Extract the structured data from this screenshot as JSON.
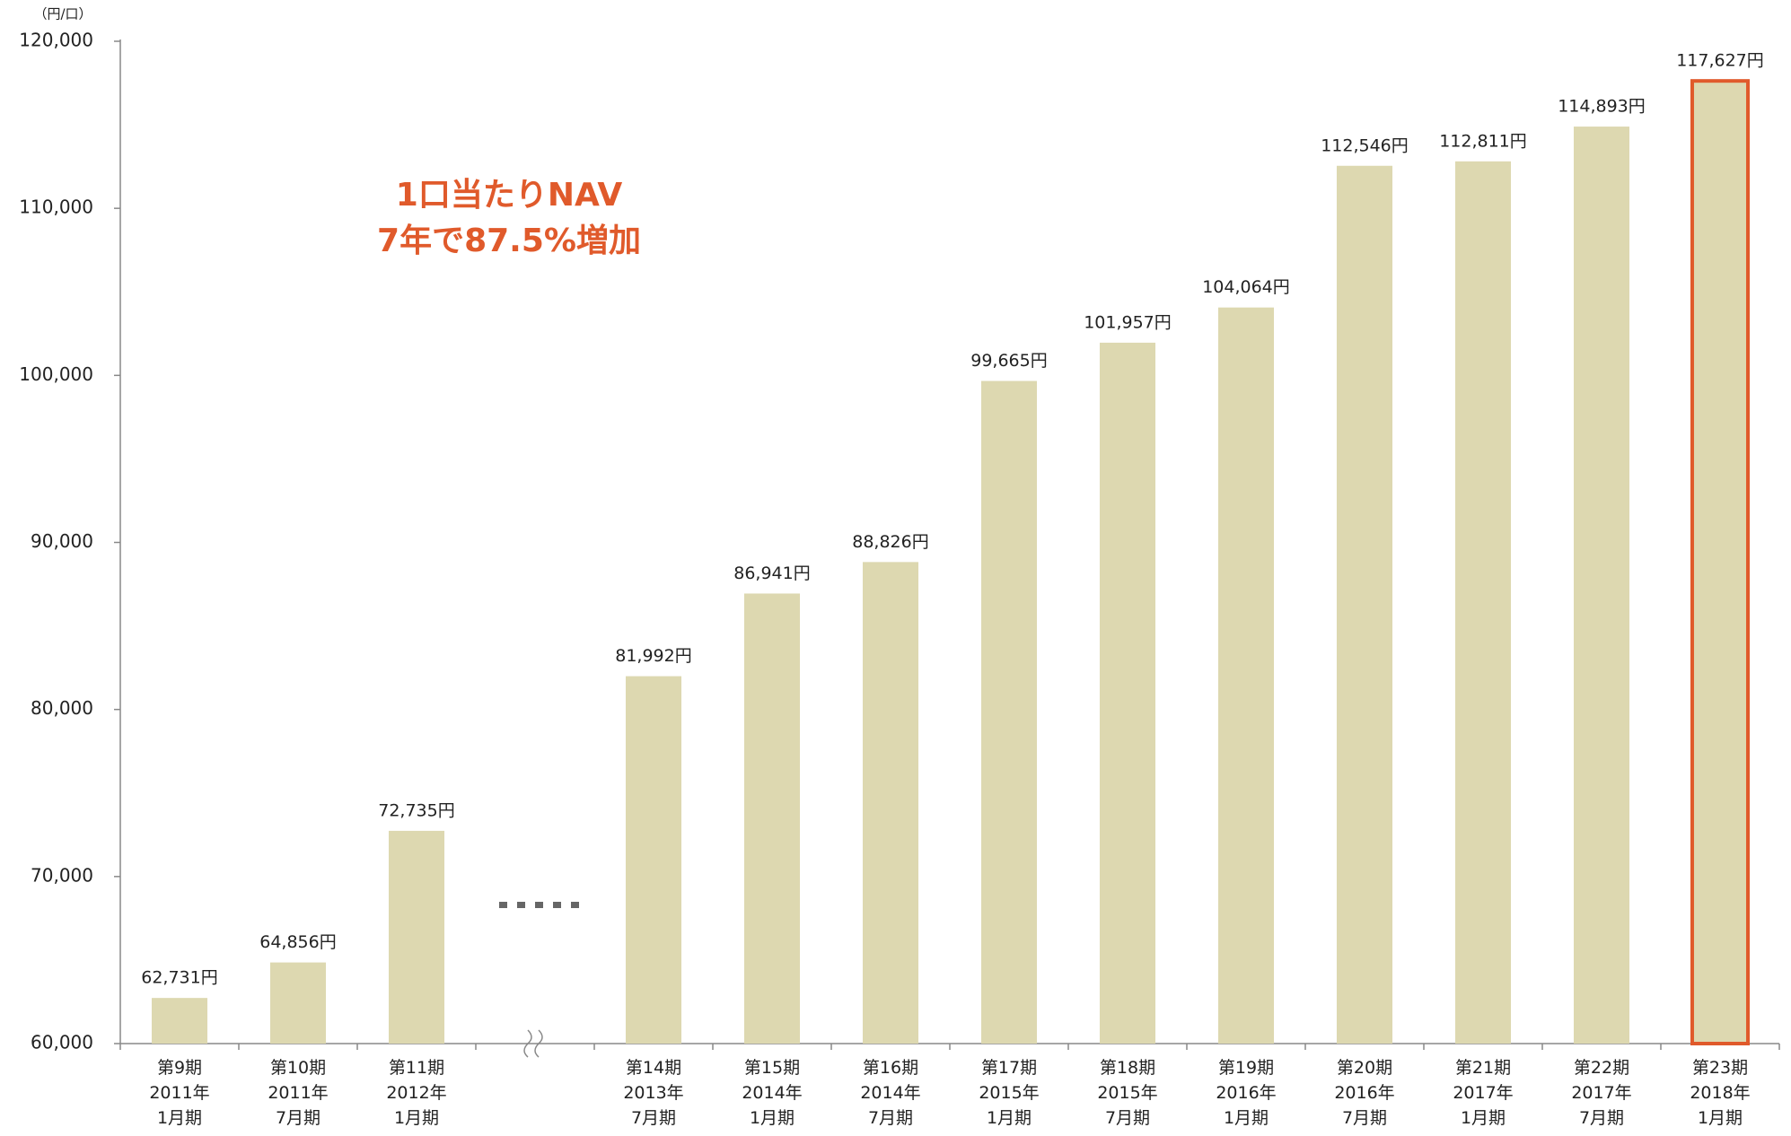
{
  "chart_data": {
    "type": "bar",
    "unit_label": "（円/口）",
    "annotation": [
      "1口当たりNAV",
      "7年で87.5%増加"
    ],
    "categories": [
      "第9期\n2011年\n1月期",
      "第10期\n2011年\n7月期",
      "第11期\n2012年\n1月期",
      null,
      "第14期\n2013年\n7月期",
      "第15期\n2014年\n1月期",
      "第16期\n2014年\n7月期",
      "第17期\n2015年\n1月期",
      "第18期\n2015年\n7月期",
      "第19期\n2016年\n1月期",
      "第20期\n2016年\n7月期",
      "第21期\n2017年\n1月期",
      "第22期\n2017年\n7月期",
      "第23期\n2018年\n1月期"
    ],
    "values": [
      62731,
      64856,
      72735,
      null,
      81992,
      86941,
      88826,
      99665,
      101957,
      104064,
      112546,
      112811,
      114893,
      117627
    ],
    "value_labels": [
      "62,731円",
      "64,856円",
      "72,735円",
      null,
      "81,992円",
      "86,941円",
      "88,826円",
      "99,665円",
      "101,957円",
      "104,064円",
      "112,546円",
      "112,811円",
      "114,893円",
      "117,627円"
    ],
    "color": "#ddd8b0",
    "highlight": {
      "index": 13,
      "color": "#e05a2b"
    },
    "annotation_color": "#e05a2b",
    "ylim": [
      60000,
      120000
    ],
    "yticks": [
      {
        "value": 60000,
        "label": "60,000"
      },
      {
        "value": 70000,
        "label": "70,000"
      },
      {
        "value": 80000,
        "label": "80,000"
      },
      {
        "value": 90000,
        "label": "90,000"
      },
      {
        "value": 100000,
        "label": "100,000"
      },
      {
        "value": 110000,
        "label": "110,000"
      },
      {
        "value": 120000,
        "label": "120,000"
      }
    ],
    "grid": false
  }
}
